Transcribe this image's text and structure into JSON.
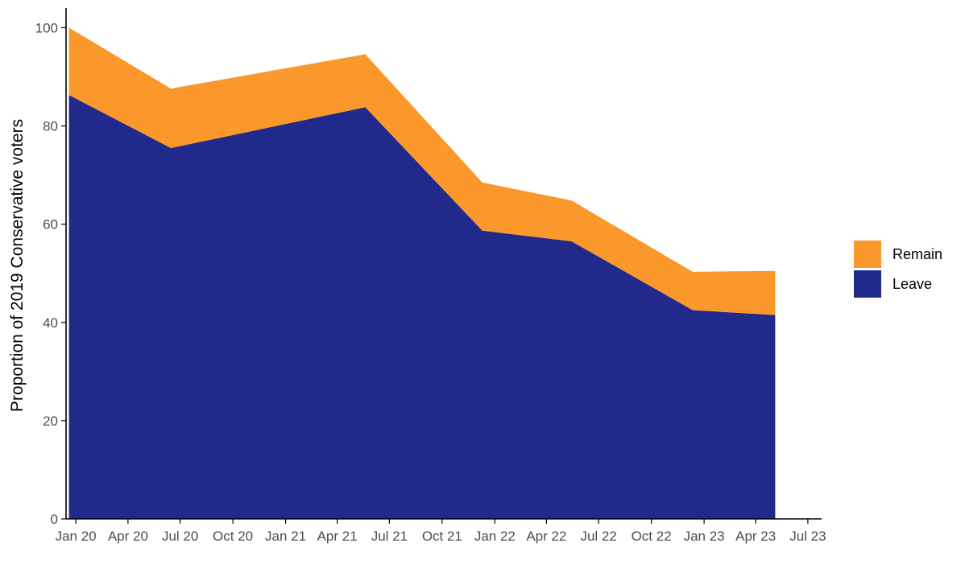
{
  "chart_data": {
    "type": "area",
    "stacked": true,
    "ylabel": "Proportion of 2019 Conservative voters",
    "ylim": [
      0,
      104
    ],
    "yticks": [
      0,
      20,
      40,
      60,
      80,
      100
    ],
    "xlim": [
      "2019-12-15",
      "2023-07-25"
    ],
    "xticks": [
      {
        "date": "2020-01-01",
        "label": "Jan 20"
      },
      {
        "date": "2020-04-01",
        "label": "Apr 20"
      },
      {
        "date": "2020-07-01",
        "label": "Jul 20"
      },
      {
        "date": "2020-10-01",
        "label": "Oct 20"
      },
      {
        "date": "2021-01-01",
        "label": "Jan 21"
      },
      {
        "date": "2021-04-01",
        "label": "Apr 21"
      },
      {
        "date": "2021-07-01",
        "label": "Jul 21"
      },
      {
        "date": "2021-10-01",
        "label": "Oct 21"
      },
      {
        "date": "2022-01-01",
        "label": "Jan 22"
      },
      {
        "date": "2022-04-01",
        "label": "Apr 22"
      },
      {
        "date": "2022-07-01",
        "label": "Jul 22"
      },
      {
        "date": "2022-10-01",
        "label": "Oct 22"
      },
      {
        "date": "2023-01-01",
        "label": "Jan 23"
      },
      {
        "date": "2023-04-01",
        "label": "Apr 23"
      },
      {
        "date": "2023-07-01",
        "label": "Jul 23"
      }
    ],
    "x": [
      "2019-12-20",
      "2020-06-15",
      "2021-05-20",
      "2021-12-10",
      "2022-05-15",
      "2022-12-12",
      "2023-05-05"
    ],
    "series": [
      {
        "name": "Leave",
        "color": "#21298a",
        "values": [
          86.3,
          75.5,
          83.8,
          58.7,
          56.5,
          42.5,
          41.5
        ]
      },
      {
        "name": "Remain",
        "color": "#fb982c",
        "values": [
          13.7,
          12.1,
          10.8,
          9.8,
          8.3,
          7.8,
          9.0
        ]
      }
    ],
    "legend": {
      "position": "right",
      "items": [
        "Remain",
        "Leave"
      ]
    },
    "grid": false
  }
}
